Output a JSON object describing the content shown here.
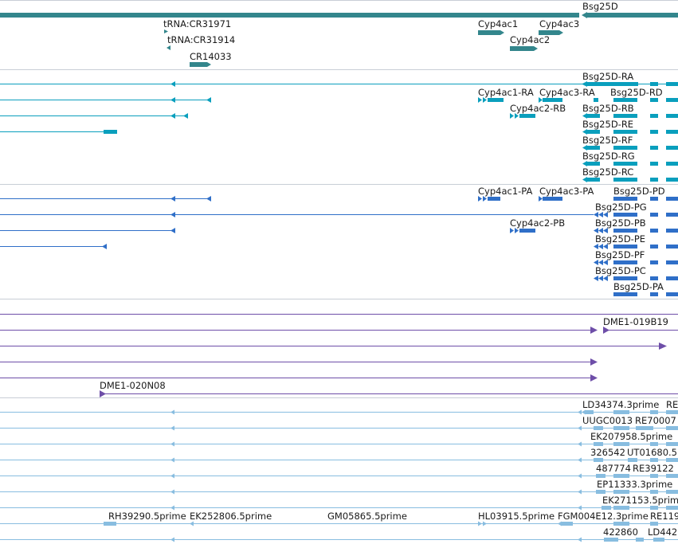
{
  "colors": {
    "teal": "#33868c",
    "cyan": "#0a9fbd",
    "blue": "#2f6fc8",
    "purple": "#6e4ea8",
    "light": "#88bde0",
    "separator": "#c8ced6"
  },
  "genes": {
    "labels": [
      {
        "text": "Bsg25D"
      },
      {
        "text": "tRNA:CR31971"
      },
      {
        "text": "tRNA:CR31914"
      },
      {
        "text": "CR14033"
      },
      {
        "text": "Cyp4ac1"
      },
      {
        "text": "Cyp4ac3"
      },
      {
        "text": "Cyp4ac2"
      }
    ]
  },
  "transcripts": {
    "labels": [
      {
        "text": "Bsg25D-RA"
      },
      {
        "text": "Cyp4ac1-RA"
      },
      {
        "text": "Cyp4ac3-RA"
      },
      {
        "text": "Bsg25D-RD"
      },
      {
        "text": "Cyp4ac2-RB"
      },
      {
        "text": "Bsg25D-RB"
      },
      {
        "text": "Bsg25D-RE"
      },
      {
        "text": "Bsg25D-RF"
      },
      {
        "text": "Bsg25D-RG"
      },
      {
        "text": "Bsg25D-RC"
      }
    ]
  },
  "proteins": {
    "labels": [
      {
        "text": "Cyp4ac1-PA"
      },
      {
        "text": "Cyp4ac3-PA"
      },
      {
        "text": "Bsg25D-PD"
      },
      {
        "text": "Bsg25D-PG"
      },
      {
        "text": "Cyp4ac2-PB"
      },
      {
        "text": "Bsg25D-PB"
      },
      {
        "text": "Bsg25D-PE"
      },
      {
        "text": "Bsg25D-PF"
      },
      {
        "text": "Bsg25D-PC"
      },
      {
        "text": "Bsg25D-PA"
      }
    ]
  },
  "clones": {
    "labels": [
      {
        "text": "DME1-019B19"
      },
      {
        "text": "DME1-020N08"
      }
    ]
  },
  "ests": {
    "labels": [
      {
        "text": "LD34374.3prime"
      },
      {
        "text": "RE"
      },
      {
        "text": "UUGC0013"
      },
      {
        "text": "RE70007"
      },
      {
        "text": "EK207958.5prime"
      },
      {
        "text": "326542"
      },
      {
        "text": "UT01680.5"
      },
      {
        "text": "487774"
      },
      {
        "text": "RE39122"
      },
      {
        "text": "EP11333.3prime"
      },
      {
        "text": "EK271153.5prime"
      },
      {
        "text": "RH39290.5prime"
      },
      {
        "text": "EK252806.5prime"
      },
      {
        "text": "GM05865.5prime"
      },
      {
        "text": "HL03915.5prime"
      },
      {
        "text": "FGM004E12.3prime"
      },
      {
        "text": "RE119"
      },
      {
        "text": "422860"
      },
      {
        "text": "LD442"
      }
    ]
  }
}
